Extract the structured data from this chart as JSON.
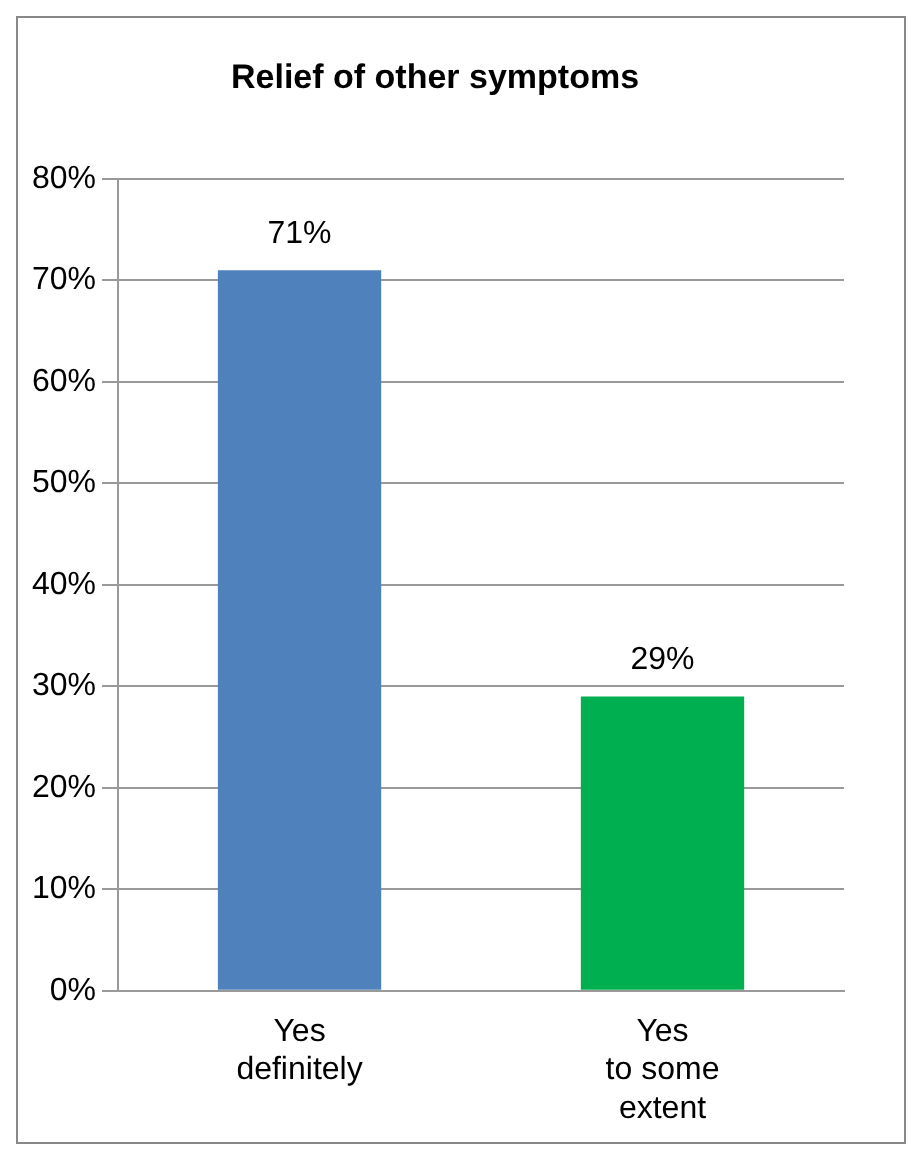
{
  "chart_data": {
    "type": "bar",
    "title": "Relief of other symptoms",
    "categories": [
      "Yes definitely",
      "Yes to some extent"
    ],
    "values": [
      71,
      29
    ],
    "colors": [
      "#4f81bd",
      "#00b050"
    ],
    "value_labels": [
      "71%",
      "29%"
    ],
    "ylim": [
      0,
      80
    ],
    "yticks": [
      {
        "value": 0,
        "label": "0%"
      },
      {
        "value": 10,
        "label": "10%"
      },
      {
        "value": 20,
        "label": "20%"
      },
      {
        "value": 30,
        "label": "30%"
      },
      {
        "value": 40,
        "label": "40%"
      },
      {
        "value": 50,
        "label": "50%"
      },
      {
        "value": 60,
        "label": "60%"
      },
      {
        "value": 70,
        "label": "70%"
      },
      {
        "value": 80,
        "label": "80%"
      }
    ],
    "grid": "y",
    "legend": false
  }
}
